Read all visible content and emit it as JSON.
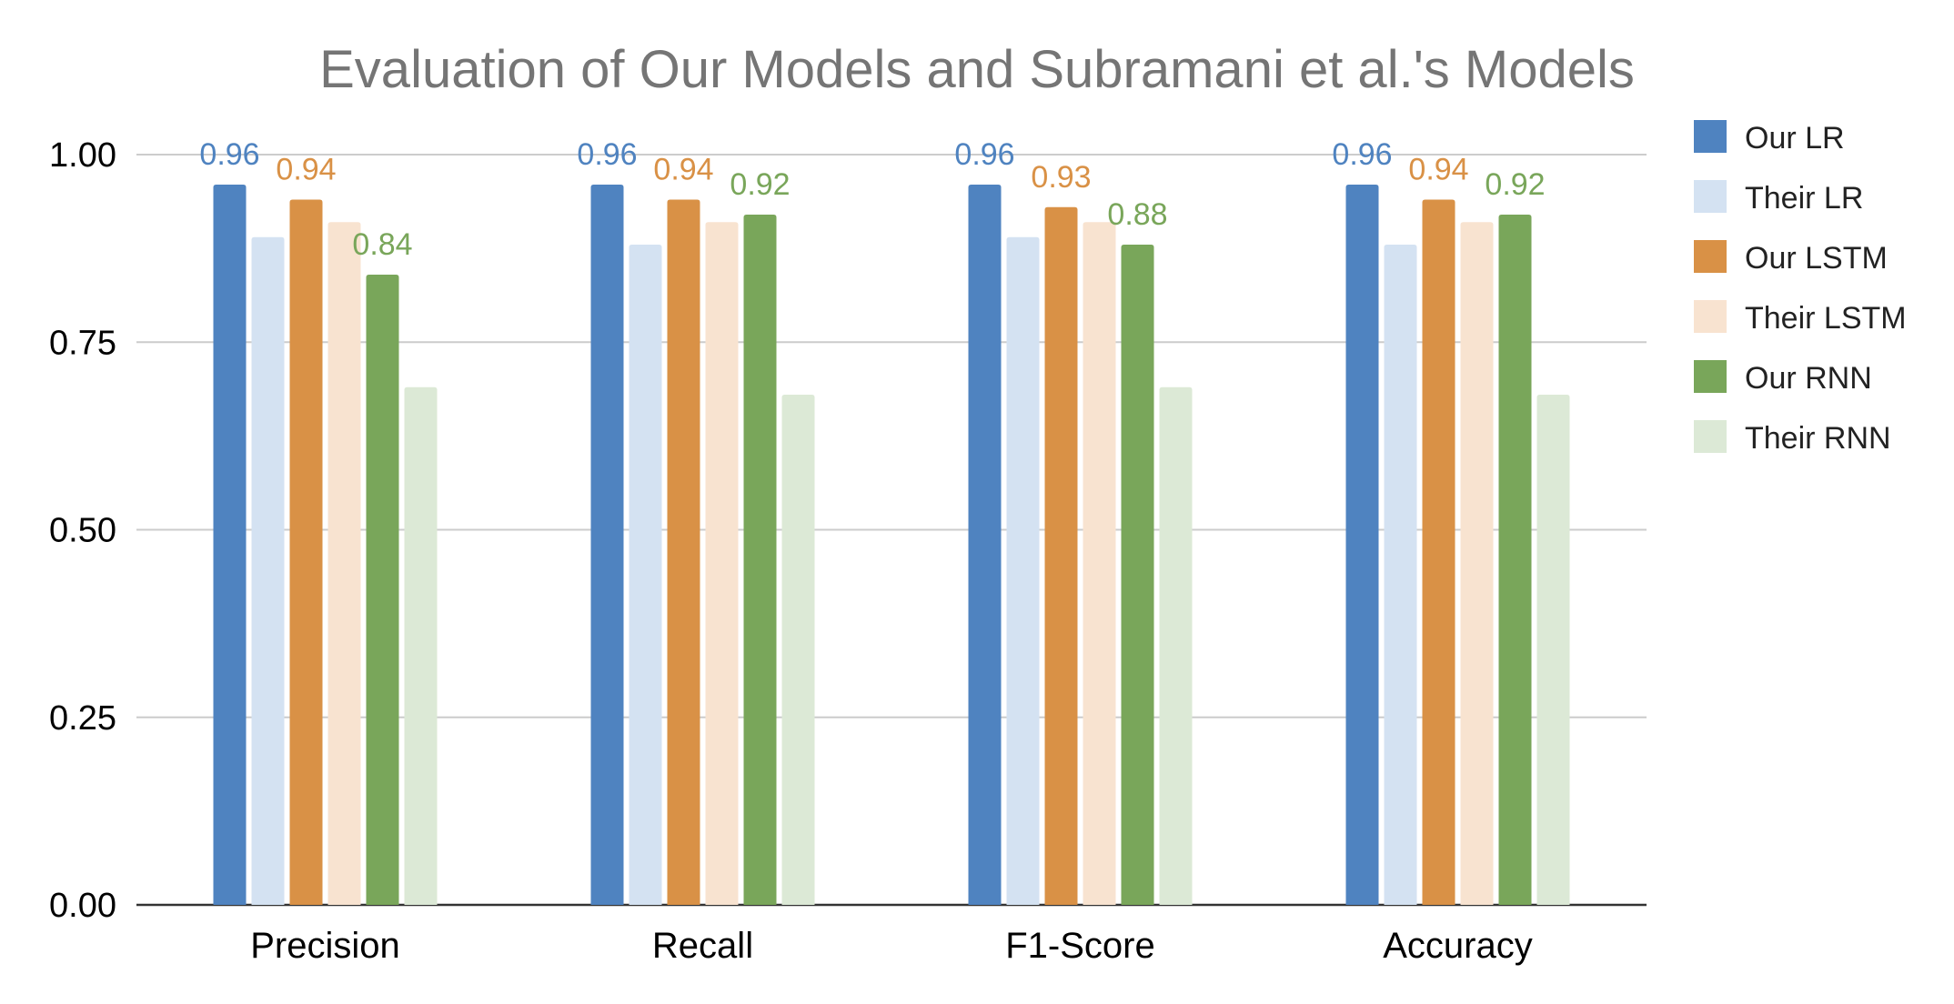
{
  "chart_data": {
    "type": "bar",
    "title": "Evaluation of Our Models and Subramani et al.'s Models",
    "xlabel": "",
    "ylabel": "",
    "ylim": [
      0,
      1
    ],
    "yticks": [
      "0.00",
      "0.25",
      "0.50",
      "0.75",
      "1.00"
    ],
    "categories": [
      "Precision",
      "Recall",
      "F1-Score",
      "Accuracy"
    ],
    "grid": true,
    "legend_position": "right",
    "series": [
      {
        "name": "Our LR",
        "color": "#4f83c0",
        "values": [
          0.96,
          0.96,
          0.96,
          0.96
        ],
        "labels": [
          "0.96",
          "0.96",
          "0.96",
          "0.96"
        ]
      },
      {
        "name": "Their LR",
        "color": "#d4e2f2",
        "values": [
          0.89,
          0.88,
          0.89,
          0.88
        ],
        "labels": []
      },
      {
        "name": "Our LSTM",
        "color": "#d99146",
        "values": [
          0.94,
          0.94,
          0.93,
          0.94
        ],
        "labels": [
          "0.94",
          "0.94",
          "0.93",
          "0.94"
        ]
      },
      {
        "name": "Their LSTM",
        "color": "#f8e3d0",
        "values": [
          0.91,
          0.91,
          0.91,
          0.91
        ],
        "labels": []
      },
      {
        "name": "Our RNN",
        "color": "#79a65a",
        "values": [
          0.84,
          0.92,
          0.88,
          0.92
        ],
        "labels": [
          "0.84",
          "0.92",
          "0.88",
          "0.92"
        ]
      },
      {
        "name": "Their RNN",
        "color": "#dce9d6",
        "values": [
          0.69,
          0.68,
          0.69,
          0.68
        ],
        "labels": []
      }
    ]
  }
}
